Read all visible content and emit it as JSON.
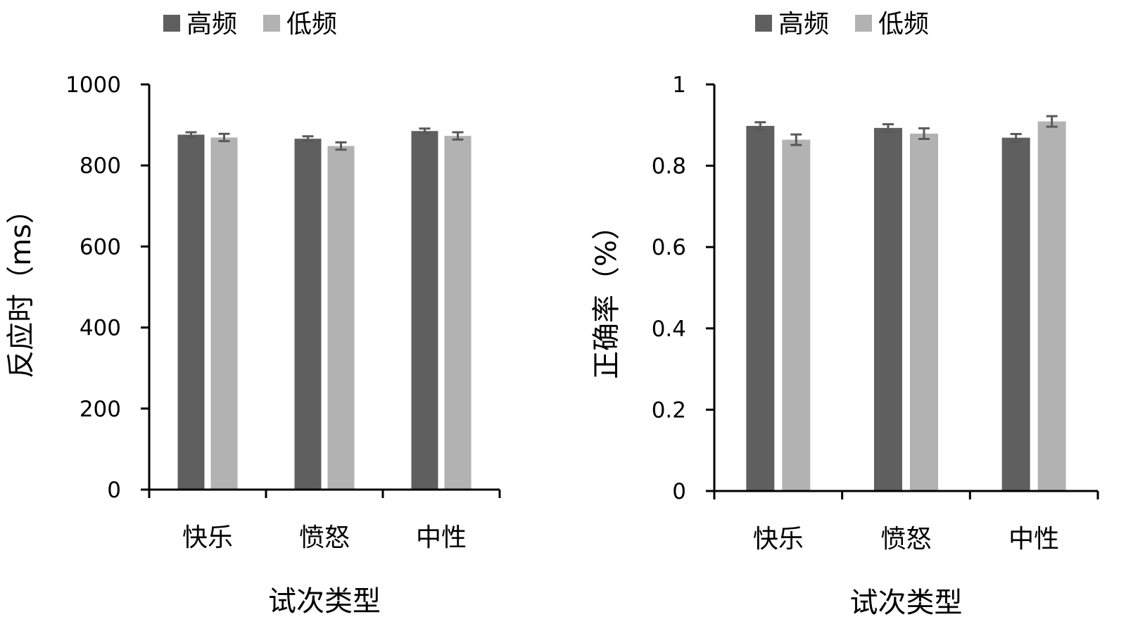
{
  "chart_data": [
    {
      "type": "bar",
      "categories": [
        "快乐",
        "愤怒",
        "中性"
      ],
      "series": [
        {
          "name": "高频",
          "values": [
            876,
            866,
            885
          ],
          "errors": [
            6,
            6,
            6
          ],
          "color": "#5f5f5f"
        },
        {
          "name": "低频",
          "values": [
            869,
            848,
            873
          ],
          "errors": [
            9,
            9,
            9
          ],
          "color": "#b2b2b2"
        }
      ],
      "xlabel": "试次类型",
      "ylabel": "反应时（ms）",
      "ylim": [
        0,
        1000
      ],
      "yticks": [
        "0",
        "200",
        "400",
        "600",
        "800",
        "1000"
      ],
      "ytick_values": [
        0,
        200,
        400,
        600,
        800,
        1000
      ],
      "legend_position": "top",
      "grid": false
    },
    {
      "type": "bar",
      "categories": [
        "快乐",
        "愤怒",
        "中性"
      ],
      "series": [
        {
          "name": "高频",
          "values": [
            0.898,
            0.893,
            0.869
          ],
          "errors": [
            0.009,
            0.009,
            0.009
          ],
          "color": "#5f5f5f"
        },
        {
          "name": "低频",
          "values": [
            0.864,
            0.879,
            0.909
          ],
          "errors": [
            0.013,
            0.013,
            0.013
          ],
          "color": "#b2b2b2"
        }
      ],
      "xlabel": "试次类型",
      "ylabel": "正确率（%）",
      "ylim": [
        0,
        1
      ],
      "yticks": [
        "0",
        "0.2",
        "0.4",
        "0.6",
        "0.8",
        "1"
      ],
      "ytick_values": [
        0,
        0.2,
        0.4,
        0.6,
        0.8,
        1
      ],
      "legend_position": "top",
      "grid": false
    }
  ]
}
